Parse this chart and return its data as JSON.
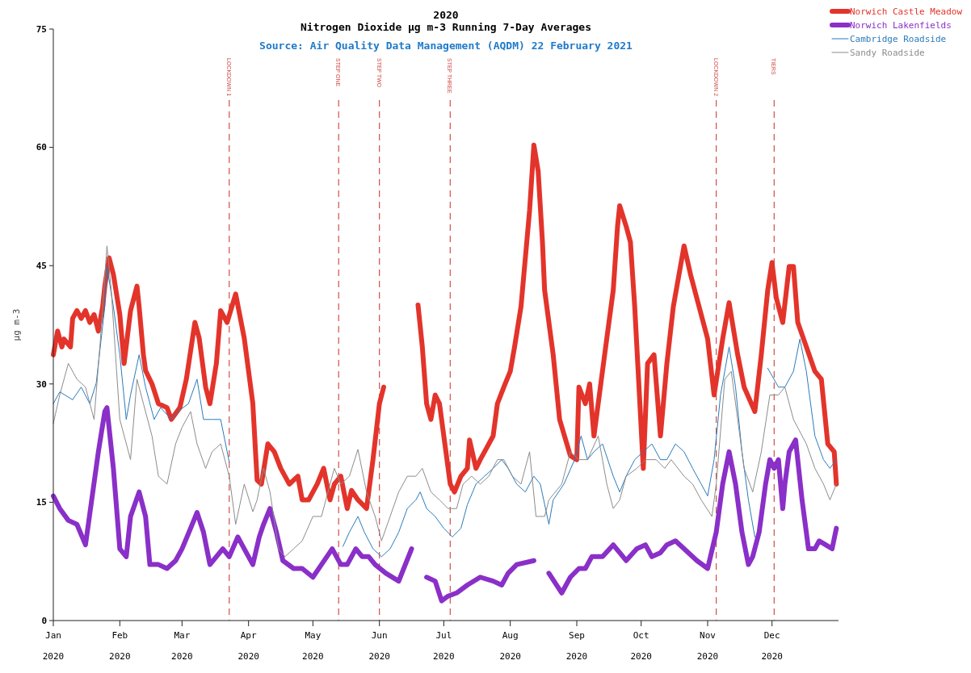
{
  "chart_data": {
    "type": "line",
    "title": "2020",
    "subtitle": "Nitrogen Dioxide µg m-3  Running 7-Day Averages",
    "annotations": [
      "Source: Air Quality Data Management (AQDM) 22 February 2021"
    ],
    "ylabel": "µg m-3",
    "xlim": [
      "2020-01-01",
      "2021-01-01"
    ],
    "ylim": [
      0,
      75
    ],
    "xticks": [
      {
        "value": "2020-01-01",
        "label": "Jan\n2020"
      },
      {
        "value": "2020-02-01",
        "label": "Feb\n2020"
      },
      {
        "value": "2020-03-01",
        "label": "Mar\n2020"
      },
      {
        "value": "2020-04-01",
        "label": "Apr\n2020"
      },
      {
        "value": "2020-05-01",
        "label": "May\n2020"
      },
      {
        "value": "2020-06-01",
        "label": "Jun\n2020"
      },
      {
        "value": "2020-07-01",
        "label": "Jul\n2020"
      },
      {
        "value": "2020-08-01",
        "label": "Aug\n2020"
      },
      {
        "value": "2020-09-01",
        "label": "Sep\n2020"
      },
      {
        "value": "2020-10-01",
        "label": "Oct\n2020"
      },
      {
        "value": "2020-11-01",
        "label": "Nov\n2020"
      },
      {
        "value": "2020-12-01",
        "label": "Dec\n2020"
      }
    ],
    "yticks": [
      0,
      15,
      30,
      45,
      60,
      75
    ],
    "legend": "top right",
    "line_style": "solid",
    "ref_lines": [
      {
        "axis": "x",
        "value": "2020-03-23",
        "label": "LOCKDOWN 1",
        "color": "#d0504a",
        "line_style": "dashed"
      },
      {
        "axis": "x",
        "value": "2020-05-13",
        "label": "STEP ONE",
        "color": "#d0504a",
        "line_style": "dashed"
      },
      {
        "axis": "x",
        "value": "2020-06-01",
        "label": "STEP TWO",
        "color": "#d0504a",
        "line_style": "dashed"
      },
      {
        "axis": "x",
        "value": "2020-07-04",
        "label": "STEP THREE",
        "color": "#d0504a",
        "line_style": "dashed"
      },
      {
        "axis": "x",
        "value": "2020-11-05",
        "label": "LOCKDOWN 2",
        "color": "#d0504a",
        "line_style": "dashed"
      },
      {
        "axis": "x",
        "value": "2020-12-02",
        "label": "TIERS",
        "color": "#d0504a",
        "line_style": "dashed"
      }
    ],
    "series": [
      {
        "name": "Norwich Castle Meadow",
        "color": "#e3342b",
        "x": [
          "2020-01-01",
          "2020-01-03",
          "2020-01-05",
          "2020-01-06",
          "2020-01-09",
          "2020-01-10",
          "2020-01-12",
          "2020-01-14",
          "2020-01-16",
          "2020-01-18",
          "2020-01-20",
          "2020-01-22",
          "2020-01-24",
          "2020-01-25",
          "2020-01-27",
          "2020-01-29",
          "2020-02-01",
          "2020-02-03",
          "2020-02-06",
          "2020-02-09",
          "2020-02-10",
          "2020-02-12",
          "2020-02-13",
          "2020-02-16",
          "2020-02-19",
          "2020-02-23",
          "2020-02-25",
          "2020-02-29",
          "2020-03-03",
          "2020-03-07",
          "2020-03-09",
          "2020-03-12",
          "2020-03-14",
          "2020-03-17",
          "2020-03-19",
          "2020-03-22",
          "2020-03-26",
          "2020-03-30",
          "2020-04-03",
          "2020-04-05",
          "2020-04-07",
          "2020-04-10",
          "2020-04-13",
          "2020-04-16",
          "2020-04-20",
          "2020-04-24",
          "2020-04-26",
          "2020-04-29",
          "2020-05-03",
          "2020-05-06",
          "2020-05-09",
          "2020-05-11",
          "2020-05-14",
          "2020-05-17",
          "2020-05-19",
          "2020-05-22",
          "2020-05-26",
          "2020-05-29",
          "2020-06-01",
          "2020-06-03",
          "2020-06-12",
          "2020-06-19",
          "2020-06-21",
          "2020-06-23",
          "2020-06-25",
          "2020-06-27",
          "2020-06-29",
          "2020-07-02",
          "2020-07-04",
          "2020-07-06",
          "2020-07-09",
          "2020-07-12",
          "2020-07-13",
          "2020-07-16",
          "2020-07-18",
          "2020-07-20",
          "2020-07-24",
          "2020-07-26",
          "2020-07-29",
          "2020-08-01",
          "2020-08-03",
          "2020-08-06",
          "2020-08-10",
          "2020-08-12",
          "2020-08-14",
          "2020-08-16",
          "2020-08-17",
          "2020-08-21",
          "2020-08-24",
          "2020-08-29",
          "2020-09-01",
          "2020-09-02",
          "2020-09-05",
          "2020-09-07",
          "2020-09-09",
          "2020-09-12",
          "2020-09-15",
          "2020-09-18",
          "2020-09-20",
          "2020-09-21",
          "2020-09-24",
          "2020-09-26",
          "2020-09-28",
          "2020-09-30",
          "2020-10-02",
          "2020-10-04",
          "2020-10-07",
          "2020-10-10",
          "2020-10-13",
          "2020-10-16",
          "2020-10-21",
          "2020-10-24",
          "2020-10-28",
          "2020-11-01",
          "2020-11-04",
          "2020-11-08",
          "2020-11-11",
          "2020-11-15",
          "2020-11-18",
          "2020-11-23",
          "2020-11-26",
          "2020-11-29",
          "2020-12-01",
          "2020-12-03",
          "2020-12-06",
          "2020-12-09",
          "2020-12-11",
          "2020-12-13",
          "2020-12-17",
          "2020-12-21",
          "2020-12-24",
          "2020-12-27",
          "2020-12-30",
          "2020-12-31"
        ],
        "values": [
          33.7,
          36.7,
          34.7,
          35.7,
          34.7,
          38.3,
          39.3,
          38.3,
          39.3,
          37.8,
          38.8,
          36.7,
          39.8,
          42.4,
          46.0,
          43.9,
          38.8,
          32.6,
          39.3,
          42.4,
          39.8,
          33.7,
          31.7,
          30.0,
          27.5,
          27.0,
          25.5,
          27.0,
          30.6,
          37.8,
          35.8,
          29.6,
          27.5,
          32.6,
          39.3,
          37.8,
          41.4,
          35.8,
          27.5,
          17.8,
          17.3,
          22.4,
          21.4,
          19.3,
          17.3,
          18.3,
          15.3,
          15.3,
          17.3,
          19.3,
          15.3,
          17.3,
          18.3,
          14.2,
          16.5,
          15.3,
          14.2,
          20.4,
          27.5,
          29.6,
          null,
          40.0,
          34.7,
          27.5,
          25.5,
          28.6,
          27.5,
          21.4,
          17.3,
          16.3,
          18.3,
          19.3,
          22.9,
          19.3,
          20.4,
          21.4,
          23.4,
          27.5,
          29.6,
          31.6,
          34.7,
          39.8,
          52.0,
          60.3,
          57.0,
          48.0,
          41.9,
          33.7,
          25.5,
          20.9,
          20.4,
          29.6,
          27.5,
          30.0,
          23.4,
          29.6,
          35.8,
          41.9,
          50.0,
          52.6,
          50.0,
          48.0,
          39.8,
          29.6,
          19.3,
          32.6,
          33.7,
          23.4,
          32.6,
          39.8,
          47.5,
          43.9,
          39.8,
          35.7,
          28.6,
          35.7,
          40.3,
          33.7,
          29.6,
          26.5,
          33.7,
          41.9,
          45.4,
          40.9,
          37.8,
          44.9,
          44.9,
          37.8,
          34.7,
          31.6,
          30.6,
          22.4,
          21.4,
          17.3
        ]
      },
      {
        "name": "Norwich Lakenfields",
        "color": "#8a2fc8",
        "x": [
          "2020-01-01",
          "2020-01-04",
          "2020-01-08",
          "2020-01-12",
          "2020-01-16",
          "2020-01-22",
          "2020-01-25",
          "2020-01-26",
          "2020-01-29",
          "2020-02-01",
          "2020-02-04",
          "2020-02-06",
          "2020-02-10",
          "2020-02-13",
          "2020-02-15",
          "2020-02-19",
          "2020-02-23",
          "2020-02-27",
          "2020-03-01",
          "2020-03-05",
          "2020-03-08",
          "2020-03-11",
          "2020-03-14",
          "2020-03-17",
          "2020-03-20",
          "2020-03-23",
          "2020-03-27",
          "2020-03-30",
          "2020-04-03",
          "2020-04-06",
          "2020-04-08",
          "2020-04-11",
          "2020-04-14",
          "2020-04-17",
          "2020-04-22",
          "2020-04-26",
          "2020-05-01",
          "2020-05-05",
          "2020-05-10",
          "2020-05-14",
          "2020-05-17",
          "2020-05-21",
          "2020-05-24",
          "2020-05-27",
          "2020-05-30",
          "2020-06-04",
          "2020-06-10",
          "2020-06-16",
          "2020-06-19",
          "2020-06-23",
          "2020-06-27",
          "2020-06-30",
          "2020-07-03",
          "2020-07-07",
          "2020-07-12",
          "2020-07-18",
          "2020-07-24",
          "2020-07-28",
          "2020-07-31",
          "2020-08-04",
          "2020-08-12",
          "2020-08-15",
          "2020-08-19",
          "2020-08-25",
          "2020-08-29",
          "2020-09-02",
          "2020-09-05",
          "2020-09-08",
          "2020-09-13",
          "2020-09-18",
          "2020-09-21",
          "2020-09-24",
          "2020-09-29",
          "2020-10-03",
          "2020-10-06",
          "2020-10-10",
          "2020-10-13",
          "2020-10-17",
          "2020-10-21",
          "2020-10-27",
          "2020-11-01",
          "2020-11-05",
          "2020-11-08",
          "2020-11-11",
          "2020-11-14",
          "2020-11-17",
          "2020-11-20",
          "2020-11-22",
          "2020-11-25",
          "2020-11-28",
          "2020-11-30",
          "2020-12-02",
          "2020-12-04",
          "2020-12-06",
          "2020-12-07",
          "2020-12-09",
          "2020-12-12",
          "2020-12-15",
          "2020-12-18",
          "2020-12-21",
          "2020-12-23",
          "2020-12-26",
          "2020-12-29",
          "2020-12-31"
        ],
        "values": [
          15.8,
          14.2,
          12.7,
          12.2,
          9.6,
          21.4,
          26.5,
          27.0,
          19.3,
          9.1,
          8.1,
          13.2,
          16.3,
          13.2,
          7.1,
          7.1,
          6.6,
          7.6,
          9.1,
          11.7,
          13.7,
          11.2,
          7.1,
          8.1,
          9.1,
          8.1,
          10.6,
          9.1,
          7.1,
          10.6,
          12.2,
          14.2,
          11.2,
          7.6,
          6.6,
          6.6,
          5.5,
          7.1,
          9.1,
          7.1,
          7.1,
          9.1,
          8.1,
          8.1,
          7.1,
          6.0,
          5.0,
          9.1,
          null,
          5.5,
          5.0,
          2.5,
          3.1,
          3.5,
          4.5,
          5.5,
          5.0,
          4.5,
          6.0,
          7.1,
          7.6,
          null,
          6.0,
          3.5,
          5.5,
          6.6,
          6.6,
          8.1,
          8.1,
          9.6,
          8.6,
          7.6,
          9.1,
          9.6,
          8.1,
          8.6,
          9.6,
          10.1,
          9.1,
          7.6,
          6.6,
          11.2,
          17.3,
          21.4,
          17.3,
          11.2,
          7.1,
          8.1,
          11.2,
          17.3,
          20.4,
          19.3,
          20.4,
          14.2,
          17.3,
          21.4,
          22.9,
          15.3,
          9.1,
          9.1,
          10.1,
          9.6,
          9.1,
          11.7
        ]
      },
      {
        "name": "Cambridge Roadside",
        "color": "#2b7bba",
        "x": [
          "2020-01-01",
          "2020-01-04",
          "2020-01-10",
          "2020-01-14",
          "2020-01-18",
          "2020-01-21",
          "2020-01-25",
          "2020-01-26",
          "2020-01-29",
          "2020-02-01",
          "2020-02-04",
          "2020-02-06",
          "2020-02-10",
          "2020-02-13",
          "2020-02-17",
          "2020-02-20",
          "2020-02-25",
          "2020-02-28",
          "2020-03-04",
          "2020-03-08",
          "2020-03-11",
          "2020-03-15",
          "2020-03-19",
          "2020-03-23",
          "2020-04-10",
          "2020-05-15",
          "2020-05-18",
          "2020-05-22",
          "2020-05-25",
          "2020-05-29",
          "2020-06-02",
          "2020-06-06",
          "2020-06-10",
          "2020-06-14",
          "2020-06-18",
          "2020-06-20",
          "2020-06-23",
          "2020-06-27",
          "2020-07-01",
          "2020-07-05",
          "2020-07-09",
          "2020-07-12",
          "2020-07-16",
          "2020-07-20",
          "2020-07-24",
          "2020-07-28",
          "2020-07-31",
          "2020-08-04",
          "2020-08-08",
          "2020-08-12",
          "2020-08-15",
          "2020-08-19",
          "2020-08-21",
          "2020-08-26",
          "2020-08-31",
          "2020-09-03",
          "2020-09-06",
          "2020-09-09",
          "2020-09-13",
          "2020-09-18",
          "2020-09-21",
          "2020-09-24",
          "2020-09-28",
          "2020-10-02",
          "2020-10-06",
          "2020-10-10",
          "2020-10-13",
          "2020-10-17",
          "2020-10-21",
          "2020-10-25",
          "2020-10-29",
          "2020-11-01",
          "2020-11-04",
          "2020-11-07",
          "2020-11-11",
          "2020-11-14",
          "2020-11-17",
          "2020-11-20",
          "2020-11-23",
          "2020-11-26",
          "2020-11-29",
          "2020-12-04",
          "2020-12-07",
          "2020-12-11",
          "2020-12-14",
          "2020-12-17",
          "2020-12-21",
          "2020-12-25",
          "2020-12-28",
          "2020-12-31"
        ],
        "values": [
          27.5,
          29.0,
          28.0,
          29.6,
          27.5,
          30.1,
          39.8,
          44.9,
          39.8,
          33.7,
          25.5,
          28.6,
          33.7,
          29.6,
          25.5,
          27.0,
          25.5,
          26.5,
          27.5,
          30.6,
          25.5,
          25.5,
          25.5,
          20.1,
          null,
          9.4,
          11.2,
          13.2,
          11.2,
          9.1,
          8.1,
          9.1,
          11.2,
          14.2,
          15.3,
          16.3,
          14.2,
          13.2,
          11.7,
          10.6,
          11.7,
          14.7,
          17.3,
          18.3,
          19.3,
          20.4,
          19.3,
          17.3,
          16.3,
          18.3,
          17.3,
          12.2,
          15.3,
          17.3,
          20.4,
          23.4,
          20.4,
          21.4,
          22.4,
          18.3,
          16.3,
          18.3,
          20.4,
          21.4,
          22.4,
          20.4,
          20.4,
          22.4,
          21.4,
          19.3,
          17.3,
          15.8,
          20.4,
          28.6,
          34.7,
          29.6,
          21.4,
          15.3,
          10.6,
          null,
          32.0,
          29.6,
          29.6,
          31.6,
          35.7,
          31.6,
          23.4,
          20.4,
          19.3,
          20.4
        ]
      },
      {
        "name": "Sandy Roadside",
        "color": "#8c8c8c",
        "x": [
          "2020-01-01",
          "2020-01-04",
          "2020-01-08",
          "2020-01-12",
          "2020-01-16",
          "2020-01-20",
          "2020-01-23",
          "2020-01-26",
          "2020-01-28",
          "2020-02-01",
          "2020-02-06",
          "2020-02-09",
          "2020-02-12",
          "2020-02-16",
          "2020-02-19",
          "2020-02-23",
          "2020-02-27",
          "2020-03-01",
          "2020-03-05",
          "2020-03-08",
          "2020-03-12",
          "2020-03-15",
          "2020-03-19",
          "2020-03-23",
          "2020-03-26",
          "2020-03-30",
          "2020-04-03",
          "2020-04-05",
          "2020-04-08",
          "2020-04-11",
          "2020-04-15",
          "2020-04-18",
          "2020-04-22",
          "2020-04-26",
          "2020-05-01",
          "2020-05-05",
          "2020-05-09",
          "2020-05-11",
          "2020-05-14",
          "2020-05-18",
          "2020-05-22",
          "2020-05-26",
          "2020-05-30",
          "2020-06-02",
          "2020-06-06",
          "2020-06-10",
          "2020-06-14",
          "2020-06-18",
          "2020-06-21",
          "2020-06-25",
          "2020-06-29",
          "2020-07-03",
          "2020-07-07",
          "2020-07-10",
          "2020-07-14",
          "2020-07-18",
          "2020-07-22",
          "2020-07-26",
          "2020-07-29",
          "2020-08-02",
          "2020-08-06",
          "2020-08-10",
          "2020-08-13",
          "2020-08-17",
          "2020-08-19",
          "2020-08-25",
          "2020-08-29",
          "2020-09-02",
          "2020-09-06",
          "2020-09-11",
          "2020-09-15",
          "2020-09-18",
          "2020-09-21",
          "2020-09-24",
          "2020-09-29",
          "2020-10-03",
          "2020-10-08",
          "2020-10-12",
          "2020-10-15",
          "2020-10-21",
          "2020-10-25",
          "2020-10-29",
          "2020-11-03",
          "2020-11-05",
          "2020-11-09",
          "2020-11-12",
          "2020-11-15",
          "2020-11-18",
          "2020-11-22",
          "2020-11-26",
          "2020-11-30",
          "2020-12-04",
          "2020-12-07",
          "2020-12-11",
          "2020-12-17",
          "2020-12-21",
          "2020-12-25",
          "2020-12-28",
          "2020-12-31"
        ],
        "values": [
          25.0,
          28.6,
          32.6,
          30.6,
          29.6,
          25.5,
          35.8,
          47.5,
          41.9,
          25.5,
          20.4,
          30.6,
          27.5,
          23.4,
          18.3,
          17.3,
          22.4,
          24.5,
          26.5,
          22.4,
          19.3,
          21.4,
          22.4,
          18.3,
          12.2,
          17.3,
          13.8,
          15.3,
          19.3,
          16.3,
          9.1,
          8.1,
          9.1,
          10.1,
          13.2,
          13.2,
          17.3,
          19.3,
          17.3,
          18.3,
          21.7,
          16.3,
          13.2,
          10.1,
          13.2,
          16.3,
          18.3,
          18.3,
          19.3,
          16.3,
          15.3,
          14.2,
          14.2,
          17.3,
          18.3,
          17.3,
          18.3,
          20.4,
          20.4,
          18.3,
          17.3,
          21.4,
          13.2,
          13.2,
          15.3,
          17.3,
          21.4,
          20.4,
          20.4,
          23.4,
          17.3,
          14.2,
          15.3,
          18.3,
          19.3,
          20.4,
          20.4,
          19.3,
          20.4,
          18.3,
          17.3,
          15.3,
          13.2,
          17.3,
          30.6,
          31.6,
          25.5,
          19.3,
          16.3,
          21.4,
          28.6,
          28.6,
          29.6,
          25.5,
          22.4,
          19.3,
          17.3,
          15.3,
          17.3
        ]
      }
    ]
  }
}
